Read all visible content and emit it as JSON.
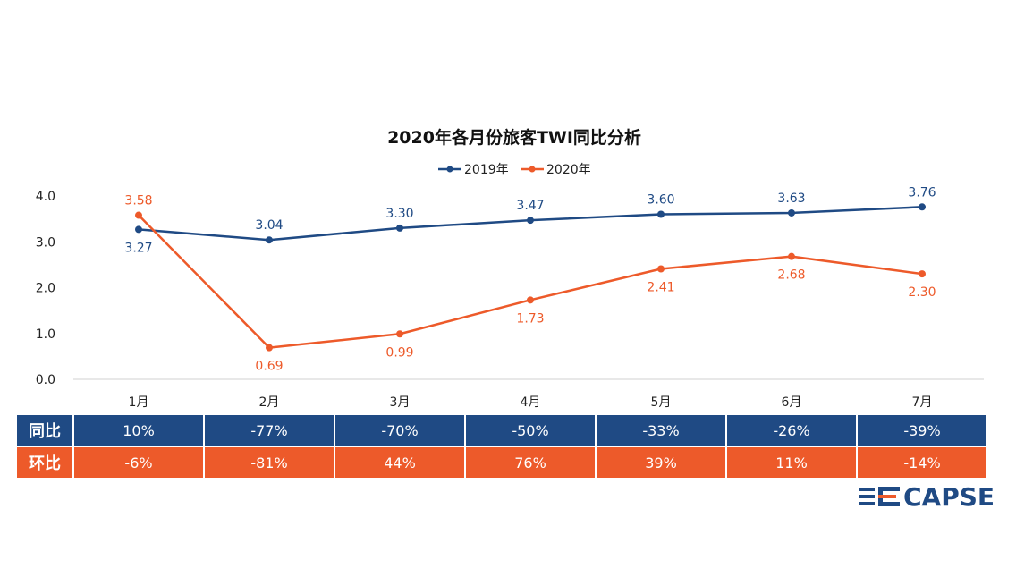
{
  "chart_data": {
    "type": "line",
    "title": "2020年各月份旅客TWI同比分析",
    "categories": [
      "1月",
      "2月",
      "3月",
      "4月",
      "5月",
      "6月",
      "7月"
    ],
    "series": [
      {
        "name": "2019年",
        "values": [
          3.27,
          3.04,
          3.3,
          3.47,
          3.6,
          3.63,
          3.76
        ],
        "labels": [
          "3.27",
          "3.04",
          "3.30",
          "3.47",
          "3.60",
          "3.63",
          "3.76"
        ],
        "color": "#1f4a84"
      },
      {
        "name": "2020年",
        "values": [
          3.58,
          0.69,
          0.99,
          1.73,
          2.41,
          2.68,
          2.3
        ],
        "labels": [
          "3.58",
          "0.69",
          "0.99",
          "1.73",
          "2.41",
          "2.68",
          "2.30"
        ],
        "color": "#ed5a2a"
      }
    ],
    "ylim": [
      0,
      4
    ],
    "yticks": [
      "0.0",
      "1.0",
      "2.0",
      "3.0",
      "4.0"
    ],
    "xlabel": "",
    "ylabel": "",
    "legend": "top-center",
    "grid": false
  },
  "table": {
    "rows": [
      {
        "header": "同比",
        "values": [
          "10%",
          "-77%",
          "-70%",
          "-50%",
          "-33%",
          "-26%",
          "-39%"
        ]
      },
      {
        "header": "环比",
        "values": [
          "-6%",
          "-81%",
          "44%",
          "76%",
          "39%",
          "11%",
          "-14%"
        ]
      }
    ]
  },
  "logo": {
    "text": "CAPSE"
  },
  "colors": {
    "blue": "#1f4a84",
    "orange": "#ed5a2a"
  }
}
